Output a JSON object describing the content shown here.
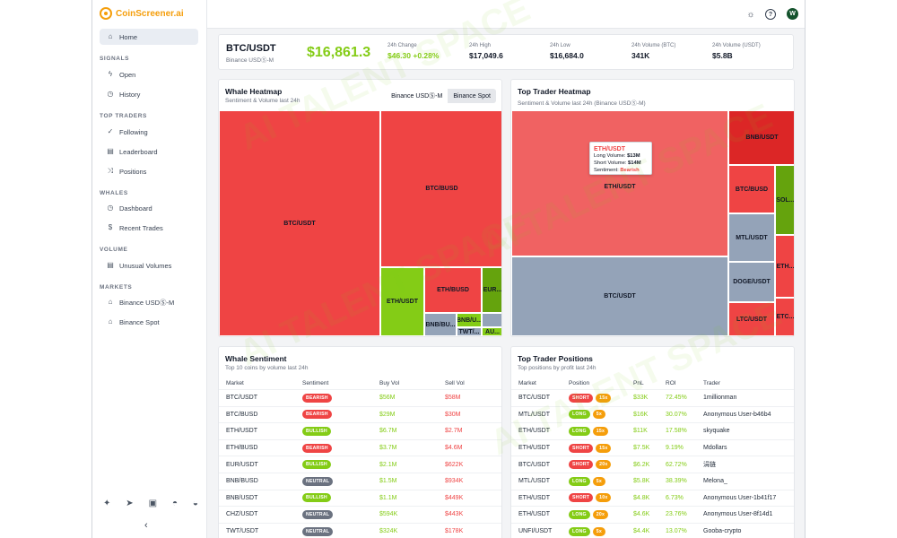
{
  "app": {
    "logo": "CoinScreener.ai"
  },
  "sidebar": {
    "home": "Home",
    "sections": [
      {
        "title": "SIGNALS",
        "items": [
          {
            "label": "Open",
            "icon": "bolt-icon"
          },
          {
            "label": "History",
            "icon": "clock-icon"
          }
        ]
      },
      {
        "title": "TOP TRADERS",
        "items": [
          {
            "label": "Following",
            "icon": "user-check-icon"
          },
          {
            "label": "Leaderboard",
            "icon": "chart-icon"
          },
          {
            "label": "Positions",
            "icon": "shuffle-icon"
          }
        ]
      },
      {
        "title": "WHALES",
        "items": [
          {
            "label": "Dashboard",
            "icon": "clock-icon"
          },
          {
            "label": "Recent Trades",
            "icon": "dollar-icon"
          }
        ]
      },
      {
        "title": "VOLUME",
        "items": [
          {
            "label": "Unusual Volumes",
            "icon": "chart-icon"
          }
        ]
      },
      {
        "title": "MARKETS",
        "items": [
          {
            "label": "Binance USDⓈ-M",
            "icon": "bank-icon"
          },
          {
            "label": "Binance Spot",
            "icon": "bank-icon"
          }
        ]
      }
    ]
  },
  "ticker": {
    "symbol": "BTC/USDT",
    "market": "Binance USDⓈ-M",
    "price": "$16,861.3",
    "stats": [
      {
        "label": "24h Change",
        "value": "$46.30 +0.28%",
        "accent": "green"
      },
      {
        "label": "24h High",
        "value": "$17,049.6"
      },
      {
        "label": "24h Low",
        "value": "$16,684.0"
      },
      {
        "label": "24h Volume (BTC)",
        "value": "341K"
      },
      {
        "label": "24h Volume (USDT)",
        "value": "$5.8B"
      }
    ]
  },
  "whale_heatmap": {
    "title": "Whale Heatmap",
    "subtitle": "Sentiment & Volume last 24h",
    "toggle": [
      "Binance USDⓈ-M",
      "Binance Spot"
    ],
    "tiles": [
      "BTC/USDT",
      "BTC/BUSD",
      "ETH/USDT",
      "ETH/BUSD",
      "EUR...",
      "BNB/BU...",
      "BNB/U...",
      "TWT/...",
      "AU..."
    ]
  },
  "trader_heatmap": {
    "title": "Top Trader Heatmap",
    "subtitle": "Sentiment & Volume last 24h (Binance USDⓈ-M)",
    "tiles": [
      "ETH/USDT",
      "BTC/USDT",
      "BNB/USDT",
      "BTC/BUSD",
      "SOL...",
      "MTL/USDT",
      "DOGE/USDT",
      "ETH...",
      "LTC/USDT",
      "ETC..."
    ],
    "tooltip": {
      "title": "ETH/USDT",
      "long_label": "Long Volume:",
      "long_value": "$13M",
      "short_label": "Short Volume:",
      "short_value": "$14M",
      "sent_label": "Sentiment:",
      "sent_value": "Bearish"
    }
  },
  "whale_sentiment": {
    "title": "Whale Sentiment",
    "subtitle": "Top 10 coins by volume last 24h",
    "headers": [
      "Market",
      "Sentiment",
      "Buy Vol",
      "Sell Vol"
    ],
    "rows": [
      {
        "market": "BTC/USDT",
        "sentiment": "BEARISH",
        "buy": "$56M",
        "sell": "$58M"
      },
      {
        "market": "BTC/BUSD",
        "sentiment": "BEARISH",
        "buy": "$29M",
        "sell": "$30M"
      },
      {
        "market": "ETH/USDT",
        "sentiment": "BULLISH",
        "buy": "$6.7M",
        "sell": "$2.7M"
      },
      {
        "market": "ETH/BUSD",
        "sentiment": "BEARISH",
        "buy": "$3.7M",
        "sell": "$4.6M"
      },
      {
        "market": "EUR/USDT",
        "sentiment": "BULLISH",
        "buy": "$2.1M",
        "sell": "$622K"
      },
      {
        "market": "BNB/BUSD",
        "sentiment": "NEUTRAL",
        "buy": "$1.5M",
        "sell": "$934K"
      },
      {
        "market": "BNB/USDT",
        "sentiment": "BULLISH",
        "buy": "$1.1M",
        "sell": "$449K"
      },
      {
        "market": "CHZ/USDT",
        "sentiment": "NEUTRAL",
        "buy": "$594K",
        "sell": "$443K"
      },
      {
        "market": "TWT/USDT",
        "sentiment": "NEUTRAL",
        "buy": "$324K",
        "sell": "$178K"
      }
    ]
  },
  "positions": {
    "title": "Top Trader Positions",
    "subtitle": "Top positions by profit last 24h",
    "headers": [
      "Market",
      "Position",
      "PnL",
      "ROI",
      "Trader"
    ],
    "rows": [
      {
        "market": "BTC/USDT",
        "side": "SHORT",
        "lev": "15x",
        "pnl": "$33K",
        "roi": "72.45%",
        "trader": "1millionman"
      },
      {
        "market": "MTL/USDT",
        "side": "LONG",
        "lev": "5x",
        "pnl": "$16K",
        "roi": "30.07%",
        "trader": "Anonymous User-b46b4"
      },
      {
        "market": "ETH/USDT",
        "side": "LONG",
        "lev": "15x",
        "pnl": "$11K",
        "roi": "17.58%",
        "trader": "skyquake"
      },
      {
        "market": "ETH/USDT",
        "side": "SHORT",
        "lev": "15x",
        "pnl": "$7.5K",
        "roi": "9.19%",
        "trader": "Mdollars"
      },
      {
        "market": "BTC/USDT",
        "side": "SHORT",
        "lev": "20x",
        "pnl": "$6.2K",
        "roi": "62.72%",
        "trader": "涓链"
      },
      {
        "market": "MTL/USDT",
        "side": "LONG",
        "lev": "5x",
        "pnl": "$5.8K",
        "roi": "38.39%",
        "trader": "Melona_"
      },
      {
        "market": "ETH/USDT",
        "side": "SHORT",
        "lev": "10x",
        "pnl": "$4.8K",
        "roi": "6.73%",
        "trader": "Anonymous User-1b41f17"
      },
      {
        "market": "ETH/USDT",
        "side": "LONG",
        "lev": "20x",
        "pnl": "$4.6K",
        "roi": "23.76%",
        "trader": "Anonymous User-8f14d1"
      },
      {
        "market": "UNFI/USDT",
        "side": "LONG",
        "lev": "5x",
        "pnl": "$4.4K",
        "roi": "13.07%",
        "trader": "Gooba-crypto"
      }
    ]
  },
  "watermark": "AI TALENT SPACE",
  "avatar": "W"
}
